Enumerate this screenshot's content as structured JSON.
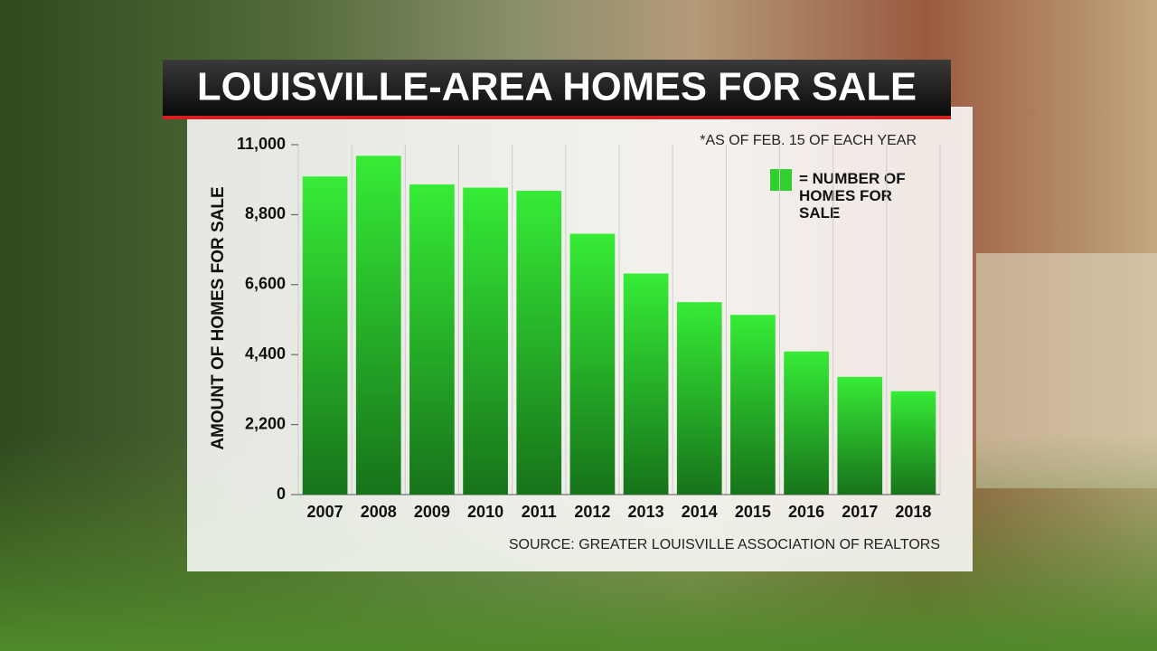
{
  "chart_data": {
    "type": "bar",
    "title": "LOUISVILLE-AREA HOMES FOR SALE",
    "note": "*AS OF FEB. 15 OF EACH YEAR",
    "source": "SOURCE: GREATER LOUISVILLE ASSOCIATION OF REALTORS",
    "y_label": "AMOUNT OF HOMES FOR SALE",
    "categories": [
      "2007",
      "2008",
      "2009",
      "2010",
      "2011",
      "2012",
      "2013",
      "2014",
      "2015",
      "2016",
      "2017",
      "2018"
    ],
    "series": [
      {
        "name": "= NUMBER OF HOMES FOR SALE",
        "color": "#36ec36",
        "values": [
          10000,
          10650,
          9750,
          9650,
          9550,
          8200,
          6950,
          6050,
          5650,
          4500,
          3700,
          3250
        ]
      }
    ],
    "ylim": [
      0,
      11000
    ],
    "yticks": [
      0,
      {
        "value": 2200,
        "label": "2,200"
      },
      {
        "value": 4400,
        "label": "4,400"
      },
      {
        "value": 6600,
        "label": "6,600"
      },
      {
        "value": 8800,
        "label": "8,800"
      },
      {
        "value": 11000,
        "label": "11,000"
      }
    ]
  }
}
